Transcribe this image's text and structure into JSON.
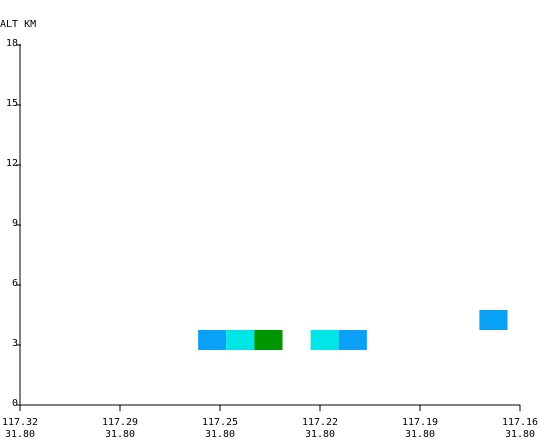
{
  "chart_data": {
    "type": "heatmap",
    "title": "",
    "xlabel": "",
    "ylabel": "ALT KM",
    "ylim": [
      0,
      18
    ],
    "yticks": [
      "0",
      "3",
      "6",
      "9",
      "12",
      "15",
      "18"
    ],
    "xlim": [
      117.32,
      117.16
    ],
    "xticks": [
      {
        "lon": "117.32",
        "lat": "31.80"
      },
      {
        "lon": "117.29",
        "lat": "31.80"
      },
      {
        "lon": "117.25",
        "lat": "31.80"
      },
      {
        "lon": "117.22",
        "lat": "31.80"
      },
      {
        "lon": "117.19",
        "lat": "31.80"
      },
      {
        "lon": "117.16",
        "lat": "31.80"
      }
    ],
    "grid": false,
    "cells": [
      {
        "lon_start": 117.263,
        "lon_end": 117.254,
        "alt_bottom": 2.75,
        "alt_top": 3.75,
        "color": "#0aa0f5"
      },
      {
        "lon_start": 117.254,
        "lon_end": 117.245,
        "alt_bottom": 2.75,
        "alt_top": 3.75,
        "color": "#00e6e6"
      },
      {
        "lon_start": 117.245,
        "lon_end": 117.236,
        "alt_bottom": 2.75,
        "alt_top": 3.75,
        "color": "#009600"
      },
      {
        "lon_start": 117.227,
        "lon_end": 117.218,
        "alt_bottom": 2.75,
        "alt_top": 3.75,
        "color": "#00e6e6"
      },
      {
        "lon_start": 117.218,
        "lon_end": 117.209,
        "alt_bottom": 2.75,
        "alt_top": 3.75,
        "color": "#0aa0f5"
      },
      {
        "lon_start": 117.173,
        "lon_end": 117.164,
        "alt_bottom": 3.75,
        "alt_top": 4.75,
        "color": "#0aa0f5"
      }
    ]
  }
}
